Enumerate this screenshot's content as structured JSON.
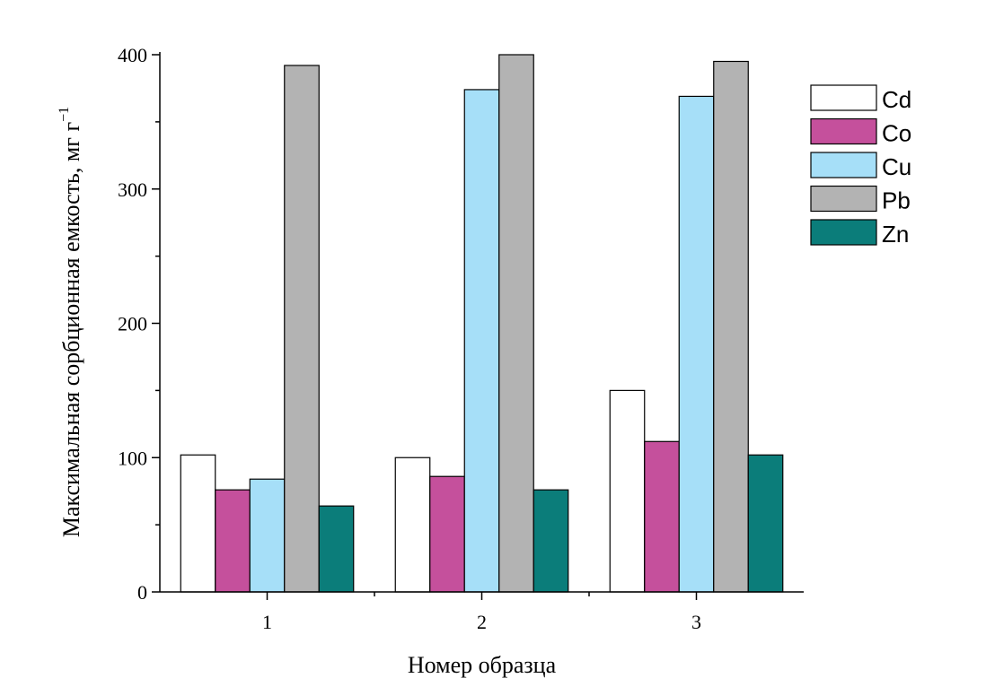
{
  "chart_data": {
    "type": "bar",
    "categories": [
      "1",
      "2",
      "3"
    ],
    "xlabel": "Номер образца",
    "ylabel": "Максимальная сорбционная емкость, мг г",
    "ylabel_sup": "−1",
    "ylim": [
      0,
      400
    ],
    "yticks": [
      0,
      100,
      200,
      300,
      400
    ],
    "grid": false,
    "legend_position": "top-right",
    "series": [
      {
        "name": "Cd",
        "color": "#ffffff",
        "values": [
          102,
          100,
          150
        ]
      },
      {
        "name": "Co",
        "color": "#c5509c",
        "values": [
          76,
          86,
          112
        ]
      },
      {
        "name": "Cu",
        "color": "#a6dff8",
        "values": [
          84,
          374,
          369
        ]
      },
      {
        "name": "Pb",
        "color": "#b3b3b3",
        "values": [
          392,
          400,
          395
        ]
      },
      {
        "name": "Zn",
        "color": "#0b7d7a",
        "values": [
          64,
          76,
          102
        ]
      }
    ]
  }
}
